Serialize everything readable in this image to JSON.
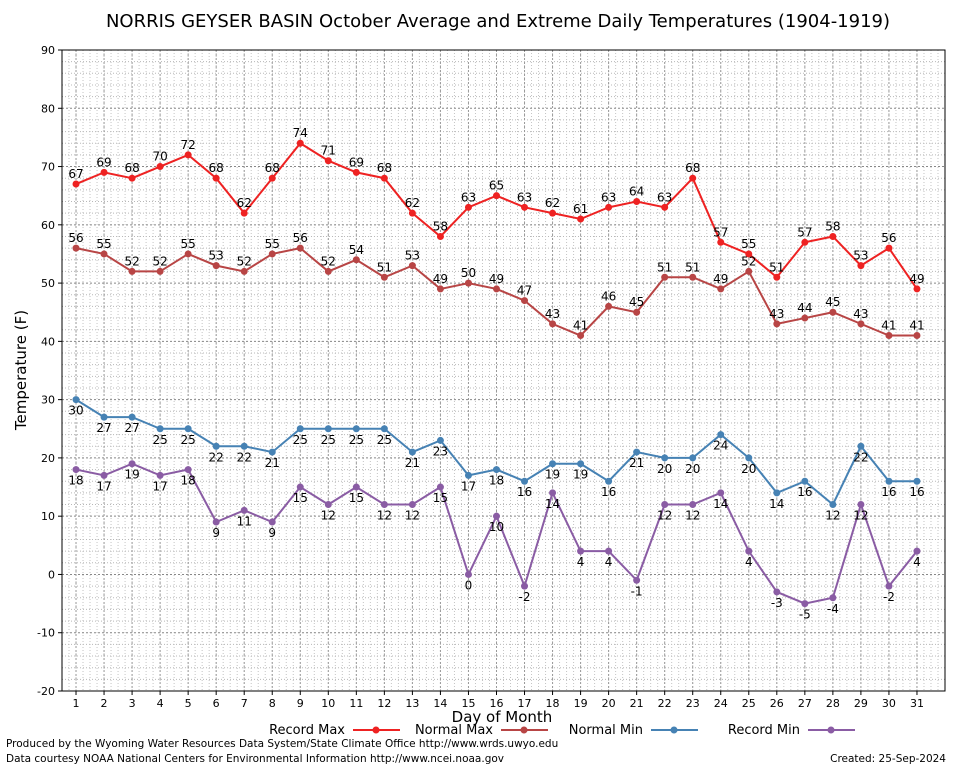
{
  "chart_data": {
    "type": "line",
    "title": "NORRIS GEYSER BASIN October Average and Extreme Daily Temperatures (1904-1919)",
    "xlabel": "Day of Month",
    "ylabel": "Temperature (F)",
    "ylim": [
      -20,
      90
    ],
    "yticks": [
      -20,
      -10,
      0,
      10,
      20,
      30,
      40,
      50,
      60,
      70,
      80,
      90
    ],
    "x": [
      1,
      2,
      3,
      4,
      5,
      6,
      7,
      8,
      9,
      10,
      11,
      12,
      13,
      14,
      15,
      16,
      17,
      18,
      19,
      20,
      21,
      22,
      23,
      24,
      25,
      26,
      27,
      28,
      29,
      30,
      31
    ],
    "grid": true,
    "legend_position": "bottom",
    "series": [
      {
        "name": "Record Max",
        "color": "#ee2222",
        "label_pos": "above",
        "values": [
          67,
          69,
          68,
          70,
          72,
          68,
          62,
          68,
          74,
          71,
          69,
          68,
          62,
          58,
          63,
          65,
          63,
          62,
          61,
          63,
          64,
          63,
          68,
          57,
          55,
          51,
          57,
          58,
          53,
          56,
          49
        ]
      },
      {
        "name": "Normal Max",
        "color": "#b84545",
        "label_pos": "above",
        "values": [
          56,
          55,
          52,
          52,
          55,
          53,
          52,
          55,
          56,
          52,
          54,
          51,
          53,
          49,
          50,
          49,
          47,
          43,
          41,
          46,
          45,
          51,
          51,
          49,
          52,
          43,
          44,
          45,
          43,
          41,
          41
        ]
      },
      {
        "name": "Normal Min",
        "color": "#4682b4",
        "label_pos": "below",
        "values": [
          30,
          27,
          27,
          25,
          25,
          22,
          22,
          21,
          25,
          25,
          25,
          25,
          21,
          23,
          17,
          18,
          16,
          19,
          19,
          16,
          21,
          20,
          20,
          24,
          20,
          14,
          16,
          12,
          22,
          16,
          16
        ]
      },
      {
        "name": "Record Min",
        "color": "#8a5ca4",
        "label_pos": "below",
        "values": [
          18,
          17,
          19,
          17,
          18,
          9,
          11,
          9,
          15,
          12,
          15,
          12,
          12,
          15,
          0,
          10,
          -2,
          14,
          4,
          4,
          -1,
          12,
          12,
          14,
          4,
          -3,
          -5,
          -4,
          12,
          -2,
          4
        ]
      }
    ]
  },
  "footer": {
    "produced_by": "Produced by the Wyoming Water Resources Data System/State Climate Office http://www.wrds.uwyo.edu",
    "courtesy": "Data courtesy NOAA National Centers for Environmental Information http://www.ncei.noaa.gov",
    "created": "Created:  25-Sep-2024"
  }
}
